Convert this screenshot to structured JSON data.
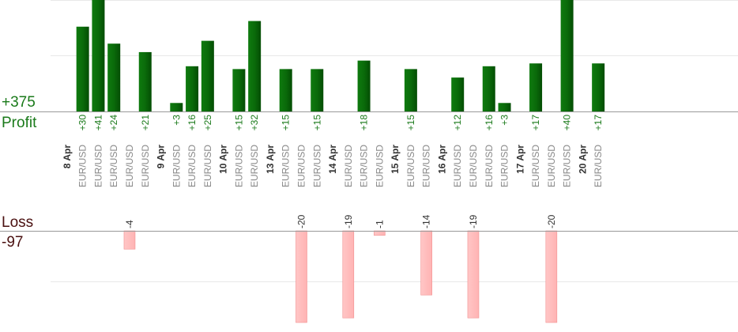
{
  "summary": {
    "profit_total": "+375",
    "profit_label": "Profit",
    "loss_label": "Loss",
    "loss_total": "-97"
  },
  "colors": {
    "profit_bar": "#0a6b0a",
    "profit_text": "#1a7a1a",
    "loss_bar": "#ffb3b3",
    "loss_text": "#333333",
    "grid": "#e8e8e8",
    "axis": "#999999"
  },
  "chart_data": {
    "type": "bar",
    "scale_max_profit": 40,
    "scale_max_loss": 20,
    "bars": [
      {
        "value": 30,
        "value_label": "+30",
        "pair": "EUR/USD"
      },
      {
        "value": 41,
        "value_label": "+41",
        "pair": "EUR/USD"
      },
      {
        "value": 24,
        "value_label": "+24",
        "pair": "EUR/USD"
      },
      {
        "value": -4,
        "value_label": "-4",
        "pair": "EUR/USD"
      },
      {
        "value": 21,
        "value_label": "+21",
        "pair": "EUR/USD"
      },
      {
        "value": 3,
        "value_label": "+3",
        "pair": "EUR/USD"
      },
      {
        "value": 16,
        "value_label": "+16",
        "pair": "EUR/USD"
      },
      {
        "value": 25,
        "value_label": "+25",
        "pair": "EUR/USD"
      },
      {
        "value": 15,
        "value_label": "+15",
        "pair": "EUR/USD"
      },
      {
        "value": 32,
        "value_label": "+32",
        "pair": "EUR/USD"
      },
      {
        "value": 15,
        "value_label": "+15",
        "pair": "EUR/USD"
      },
      {
        "value": -20,
        "value_label": "-20",
        "pair": "EUR/USD"
      },
      {
        "value": 15,
        "value_label": "+15",
        "pair": "EUR/USD"
      },
      {
        "value": -19,
        "value_label": "-19",
        "pair": "EUR/USD"
      },
      {
        "value": 18,
        "value_label": "+18",
        "pair": "EUR/USD"
      },
      {
        "value": -1,
        "value_label": "-1",
        "pair": "EUR/USD"
      },
      {
        "value": 15,
        "value_label": "+15",
        "pair": "EUR/USD"
      },
      {
        "value": -14,
        "value_label": "-14",
        "pair": "EUR/USD"
      },
      {
        "value": 12,
        "value_label": "+12",
        "pair": "EUR/USD"
      },
      {
        "value": -19,
        "value_label": "-19",
        "pair": "EUR/USD"
      },
      {
        "value": 16,
        "value_label": "+16",
        "pair": "EUR/USD"
      },
      {
        "value": 3,
        "value_label": "+3",
        "pair": "EUR/USD"
      },
      {
        "value": 17,
        "value_label": "+17",
        "pair": "EUR/USD"
      },
      {
        "value": -20,
        "value_label": "-20",
        "pair": "EUR/USD"
      },
      {
        "value": 40,
        "value_label": "+40",
        "pair": "EUR/USD"
      },
      {
        "value": 17,
        "value_label": "+17",
        "pair": "EUR/USD"
      }
    ],
    "dates": [
      {
        "label": "8 Apr",
        "before_bar": 0
      },
      {
        "label": "9 Apr",
        "before_bar": 5
      },
      {
        "label": "10 Apr",
        "before_bar": 8
      },
      {
        "label": "13 Apr",
        "before_bar": 10
      },
      {
        "label": "14 Apr",
        "before_bar": 13
      },
      {
        "label": "15 Apr",
        "before_bar": 16
      },
      {
        "label": "16 Apr",
        "before_bar": 18
      },
      {
        "label": "17 Apr",
        "before_bar": 22
      },
      {
        "label": "20 Apr",
        "before_bar": 25
      }
    ]
  }
}
